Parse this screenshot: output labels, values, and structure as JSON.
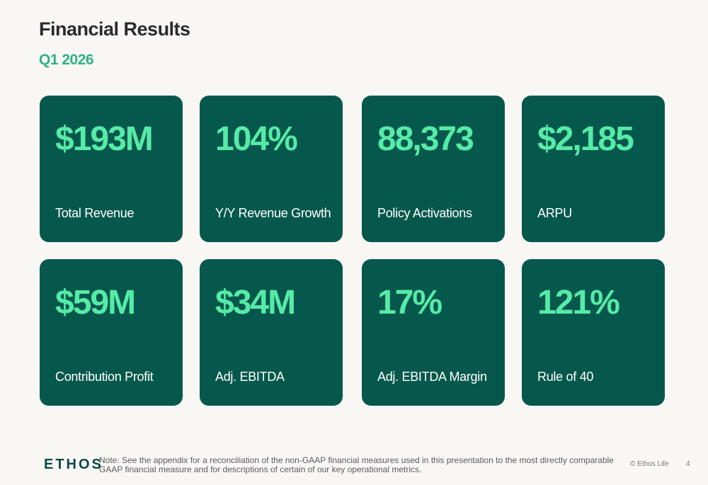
{
  "header": {
    "title": "Financial Results",
    "subtitle": "Q1 2026"
  },
  "colors": {
    "background": "#f8f7f4",
    "card": "#07584c",
    "value": "#55eba7",
    "accent": "#2fb27f"
  },
  "metrics": [
    {
      "value": "$193M",
      "label": "Total Revenue"
    },
    {
      "value": "104%",
      "label": "Y/Y Revenue Growth"
    },
    {
      "value": "88,373",
      "label": "Policy Activations"
    },
    {
      "value": "$2,185",
      "label": "ARPU"
    },
    {
      "value": "$59M",
      "label": "Contribution Profit"
    },
    {
      "value": "$34M",
      "label": "Adj. EBITDA"
    },
    {
      "value": "17%",
      "label": "Adj. EBITDA Margin"
    },
    {
      "value": "121%",
      "label": "Rule of 40"
    }
  ],
  "footer": {
    "logo": "ETHOS",
    "note": "Note: See the appendix for a reconciliation of the non-GAAP financial measures used in this presentation to the most directly comparable GAAP financial measure and for descriptions of certain of our key operational metrics.",
    "copyright": "© Ethos Life",
    "page_number": "4"
  }
}
